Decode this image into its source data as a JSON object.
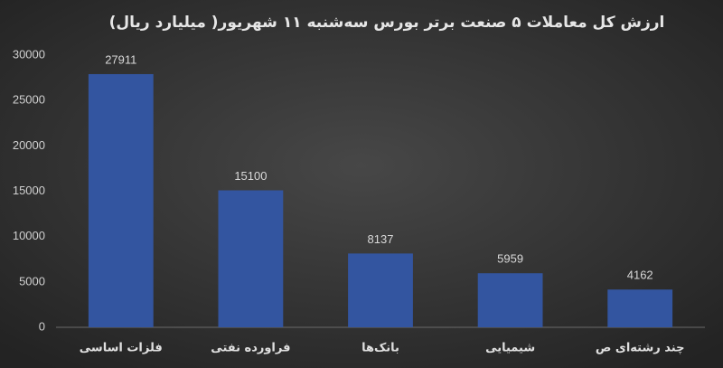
{
  "chart_data": {
    "type": "bar",
    "title": "ارزش کل معاملات ۵ صنعت برتر بورس سه‌شنبه ۱۱ شهریور( میلیارد ریال)",
    "categories": [
      "فلزات اساسی",
      "فراورده نفتی",
      "بانک‌ها",
      "شیمیایی",
      "چند رشته‌ای ص"
    ],
    "values": [
      27911,
      15100,
      8137,
      5959,
      4162
    ],
    "color": "#3355a0",
    "ylim": [
      0,
      30000
    ],
    "yticks": [
      0,
      5000,
      10000,
      15000,
      20000,
      25000,
      30000
    ],
    "grid": false,
    "data_labels": true
  }
}
